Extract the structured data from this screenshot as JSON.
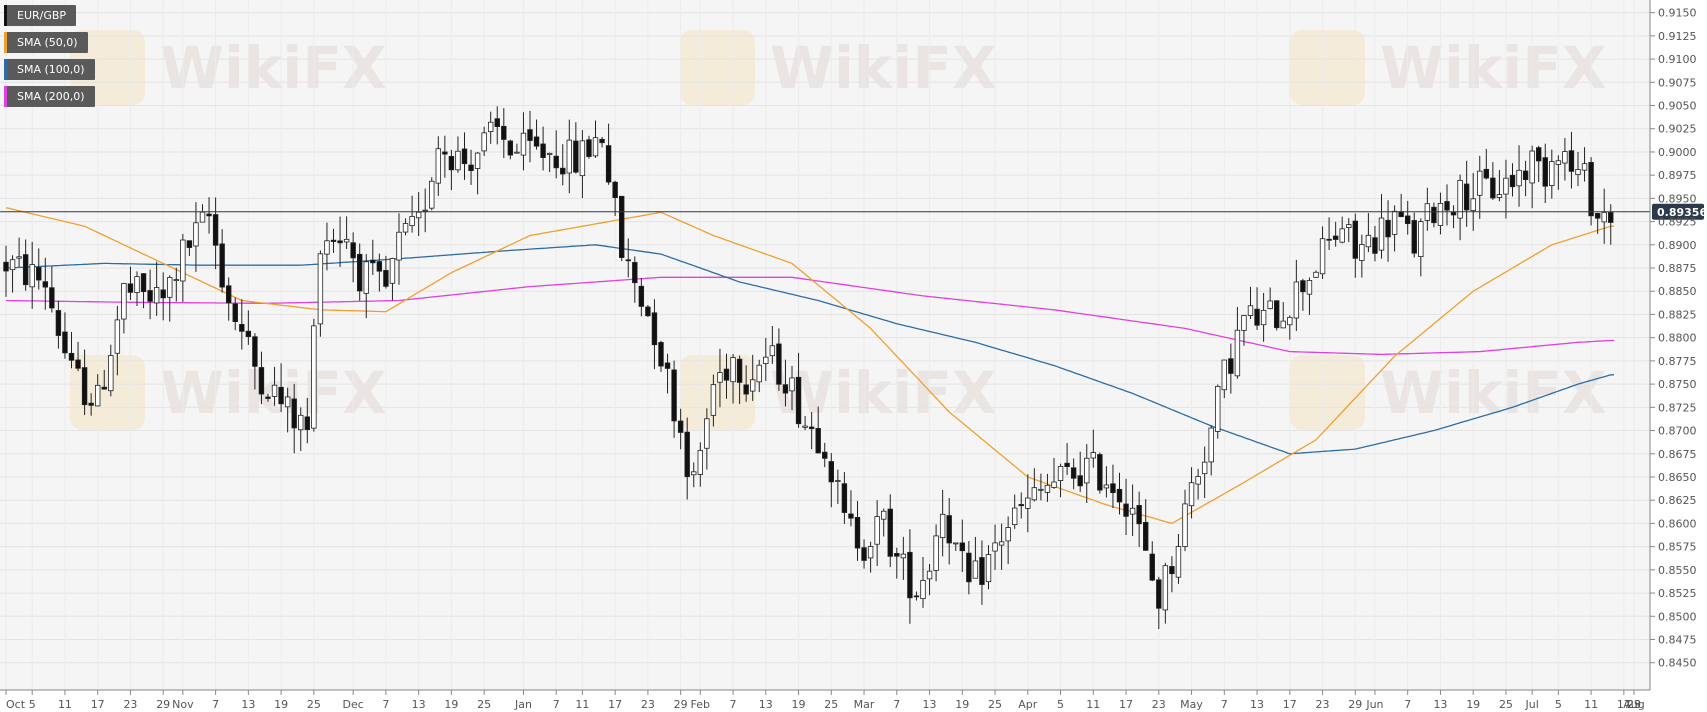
{
  "legend": [
    {
      "label": "EUR/GBP",
      "color": "#111111"
    },
    {
      "label": "SMA (50,0)",
      "color": "#f0a030"
    },
    {
      "label": "SMA (100,0)",
      "color": "#2e6da4"
    },
    {
      "label": "SMA (200,0)",
      "color": "#e040e0"
    }
  ],
  "current_price": "0.89356",
  "watermark": "WikiFX",
  "chart_data": {
    "type": "candlestick",
    "instrument": "EUR/GBP",
    "ylim": [
      0.844,
      0.9155
    ],
    "y_ticks": [
      "0.9150",
      "0.9125",
      "0.9100",
      "0.9075",
      "0.9050",
      "0.9025",
      "0.9000",
      "0.8975",
      "0.8950",
      "0.8925",
      "0.8900",
      "0.8875",
      "0.8850",
      "0.8825",
      "0.8800",
      "0.8775",
      "0.8750",
      "0.8725",
      "0.8700",
      "0.8675",
      "0.8650",
      "0.8625",
      "0.8600",
      "0.8575",
      "0.8550",
      "0.8525",
      "0.8500",
      "0.8475",
      "0.8450"
    ],
    "x_ticks": [
      "Oct",
      "5",
      "11",
      "17",
      "23",
      "29",
      "Nov",
      "7",
      "13",
      "19",
      "25",
      "Dec",
      "7",
      "13",
      "19",
      "25",
      "Jan",
      "7",
      "11",
      "17",
      "23",
      "29",
      "Feb",
      "7",
      "13",
      "19",
      "25",
      "Mar",
      "7",
      "13",
      "19",
      "25",
      "Apr",
      "5",
      "11",
      "17",
      "23",
      "May",
      "7",
      "13",
      "17",
      "23",
      "29",
      "Jun",
      "7",
      "13",
      "19",
      "25",
      "Jul",
      "5",
      "11",
      "17",
      "23",
      "29",
      "Aug"
    ],
    "current_price": 0.89356,
    "anchors": [
      [
        0,
        0.888
      ],
      [
        6,
        0.886
      ],
      [
        10,
        0.876
      ],
      [
        14,
        0.873
      ],
      [
        18,
        0.885
      ],
      [
        24,
        0.884
      ],
      [
        27,
        0.889
      ],
      [
        31,
        0.893
      ],
      [
        34,
        0.884
      ],
      [
        38,
        0.877
      ],
      [
        43,
        0.872
      ],
      [
        46,
        0.87
      ],
      [
        48,
        0.891
      ],
      [
        52,
        0.891
      ],
      [
        54,
        0.887
      ],
      [
        58,
        0.885
      ],
      [
        60,
        0.89
      ],
      [
        63,
        0.892
      ],
      [
        66,
        0.901
      ],
      [
        70,
        0.899
      ],
      [
        75,
        0.902
      ],
      [
        78,
        0.9
      ],
      [
        83,
        0.9
      ],
      [
        87,
        0.899
      ],
      [
        91,
        0.902
      ],
      [
        94,
        0.889
      ],
      [
        96,
        0.886
      ],
      [
        99,
        0.881
      ],
      [
        103,
        0.87
      ],
      [
        105,
        0.864
      ],
      [
        108,
        0.875
      ],
      [
        111,
        0.878
      ],
      [
        113,
        0.876
      ],
      [
        116,
        0.878
      ],
      [
        119,
        0.876
      ],
      [
        122,
        0.871
      ],
      [
        125,
        0.869
      ],
      [
        128,
        0.86
      ],
      [
        131,
        0.858
      ],
      [
        134,
        0.86
      ],
      [
        136,
        0.856
      ],
      [
        139,
        0.853
      ],
      [
        141,
        0.856
      ],
      [
        143,
        0.862
      ],
      [
        145,
        0.857
      ],
      [
        147,
        0.853
      ],
      [
        150,
        0.856
      ],
      [
        153,
        0.86
      ],
      [
        156,
        0.862
      ],
      [
        159,
        0.864
      ],
      [
        162,
        0.865
      ],
      [
        165,
        0.866
      ],
      [
        168,
        0.865
      ],
      [
        172,
        0.862
      ],
      [
        174,
        0.856
      ],
      [
        176,
        0.852
      ],
      [
        178,
        0.856
      ],
      [
        181,
        0.864
      ],
      [
        184,
        0.87
      ],
      [
        186,
        0.876
      ],
      [
        189,
        0.882
      ],
      [
        192,
        0.882
      ],
      [
        195,
        0.883
      ],
      [
        198,
        0.886
      ],
      [
        201,
        0.889
      ],
      [
        204,
        0.892
      ],
      [
        206,
        0.889
      ],
      [
        209,
        0.891
      ],
      [
        212,
        0.893
      ],
      [
        215,
        0.89
      ],
      [
        218,
        0.894
      ],
      [
        221,
        0.895
      ],
      [
        224,
        0.896
      ],
      [
        227,
        0.896
      ],
      [
        230,
        0.897
      ],
      [
        233,
        0.899
      ],
      [
        235,
        0.898
      ],
      [
        237,
        0.901
      ],
      [
        239,
        0.898
      ],
      [
        241,
        0.897
      ],
      [
        243,
        0.893
      ],
      [
        245,
        0.8935
      ]
    ],
    "sma": {
      "sma50": [
        [
          0,
          0.894
        ],
        [
          12,
          0.892
        ],
        [
          24,
          0.888
        ],
        [
          36,
          0.884
        ],
        [
          48,
          0.883
        ],
        [
          58,
          0.8828
        ],
        [
          68,
          0.887
        ],
        [
          80,
          0.891
        ],
        [
          92,
          0.8925
        ],
        [
          100,
          0.8935
        ],
        [
          108,
          0.891
        ],
        [
          120,
          0.888
        ],
        [
          132,
          0.881
        ],
        [
          144,
          0.872
        ],
        [
          156,
          0.865
        ],
        [
          168,
          0.862
        ],
        [
          178,
          0.86
        ],
        [
          188,
          0.864
        ],
        [
          200,
          0.869
        ],
        [
          212,
          0.878
        ],
        [
          224,
          0.885
        ],
        [
          236,
          0.89
        ],
        [
          245,
          0.892
        ]
      ],
      "sma100": [
        [
          0,
          0.8875
        ],
        [
          15,
          0.888
        ],
        [
          30,
          0.8878
        ],
        [
          45,
          0.8878
        ],
        [
          60,
          0.8885
        ],
        [
          75,
          0.8893
        ],
        [
          90,
          0.89
        ],
        [
          100,
          0.889
        ],
        [
          112,
          0.886
        ],
        [
          124,
          0.884
        ],
        [
          136,
          0.8815
        ],
        [
          148,
          0.8795
        ],
        [
          160,
          0.877
        ],
        [
          172,
          0.874
        ],
        [
          184,
          0.8705
        ],
        [
          196,
          0.8675
        ],
        [
          206,
          0.868
        ],
        [
          218,
          0.87
        ],
        [
          230,
          0.8725
        ],
        [
          240,
          0.875
        ],
        [
          245,
          0.876
        ]
      ],
      "sma200": [
        [
          0,
          0.884
        ],
        [
          20,
          0.8838
        ],
        [
          40,
          0.8837
        ],
        [
          60,
          0.884
        ],
        [
          80,
          0.8855
        ],
        [
          100,
          0.8865
        ],
        [
          120,
          0.8865
        ],
        [
          140,
          0.8845
        ],
        [
          160,
          0.883
        ],
        [
          180,
          0.881
        ],
        [
          196,
          0.8785
        ],
        [
          210,
          0.8782
        ],
        [
          225,
          0.8785
        ],
        [
          240,
          0.8795
        ],
        [
          245,
          0.8797
        ]
      ]
    }
  }
}
